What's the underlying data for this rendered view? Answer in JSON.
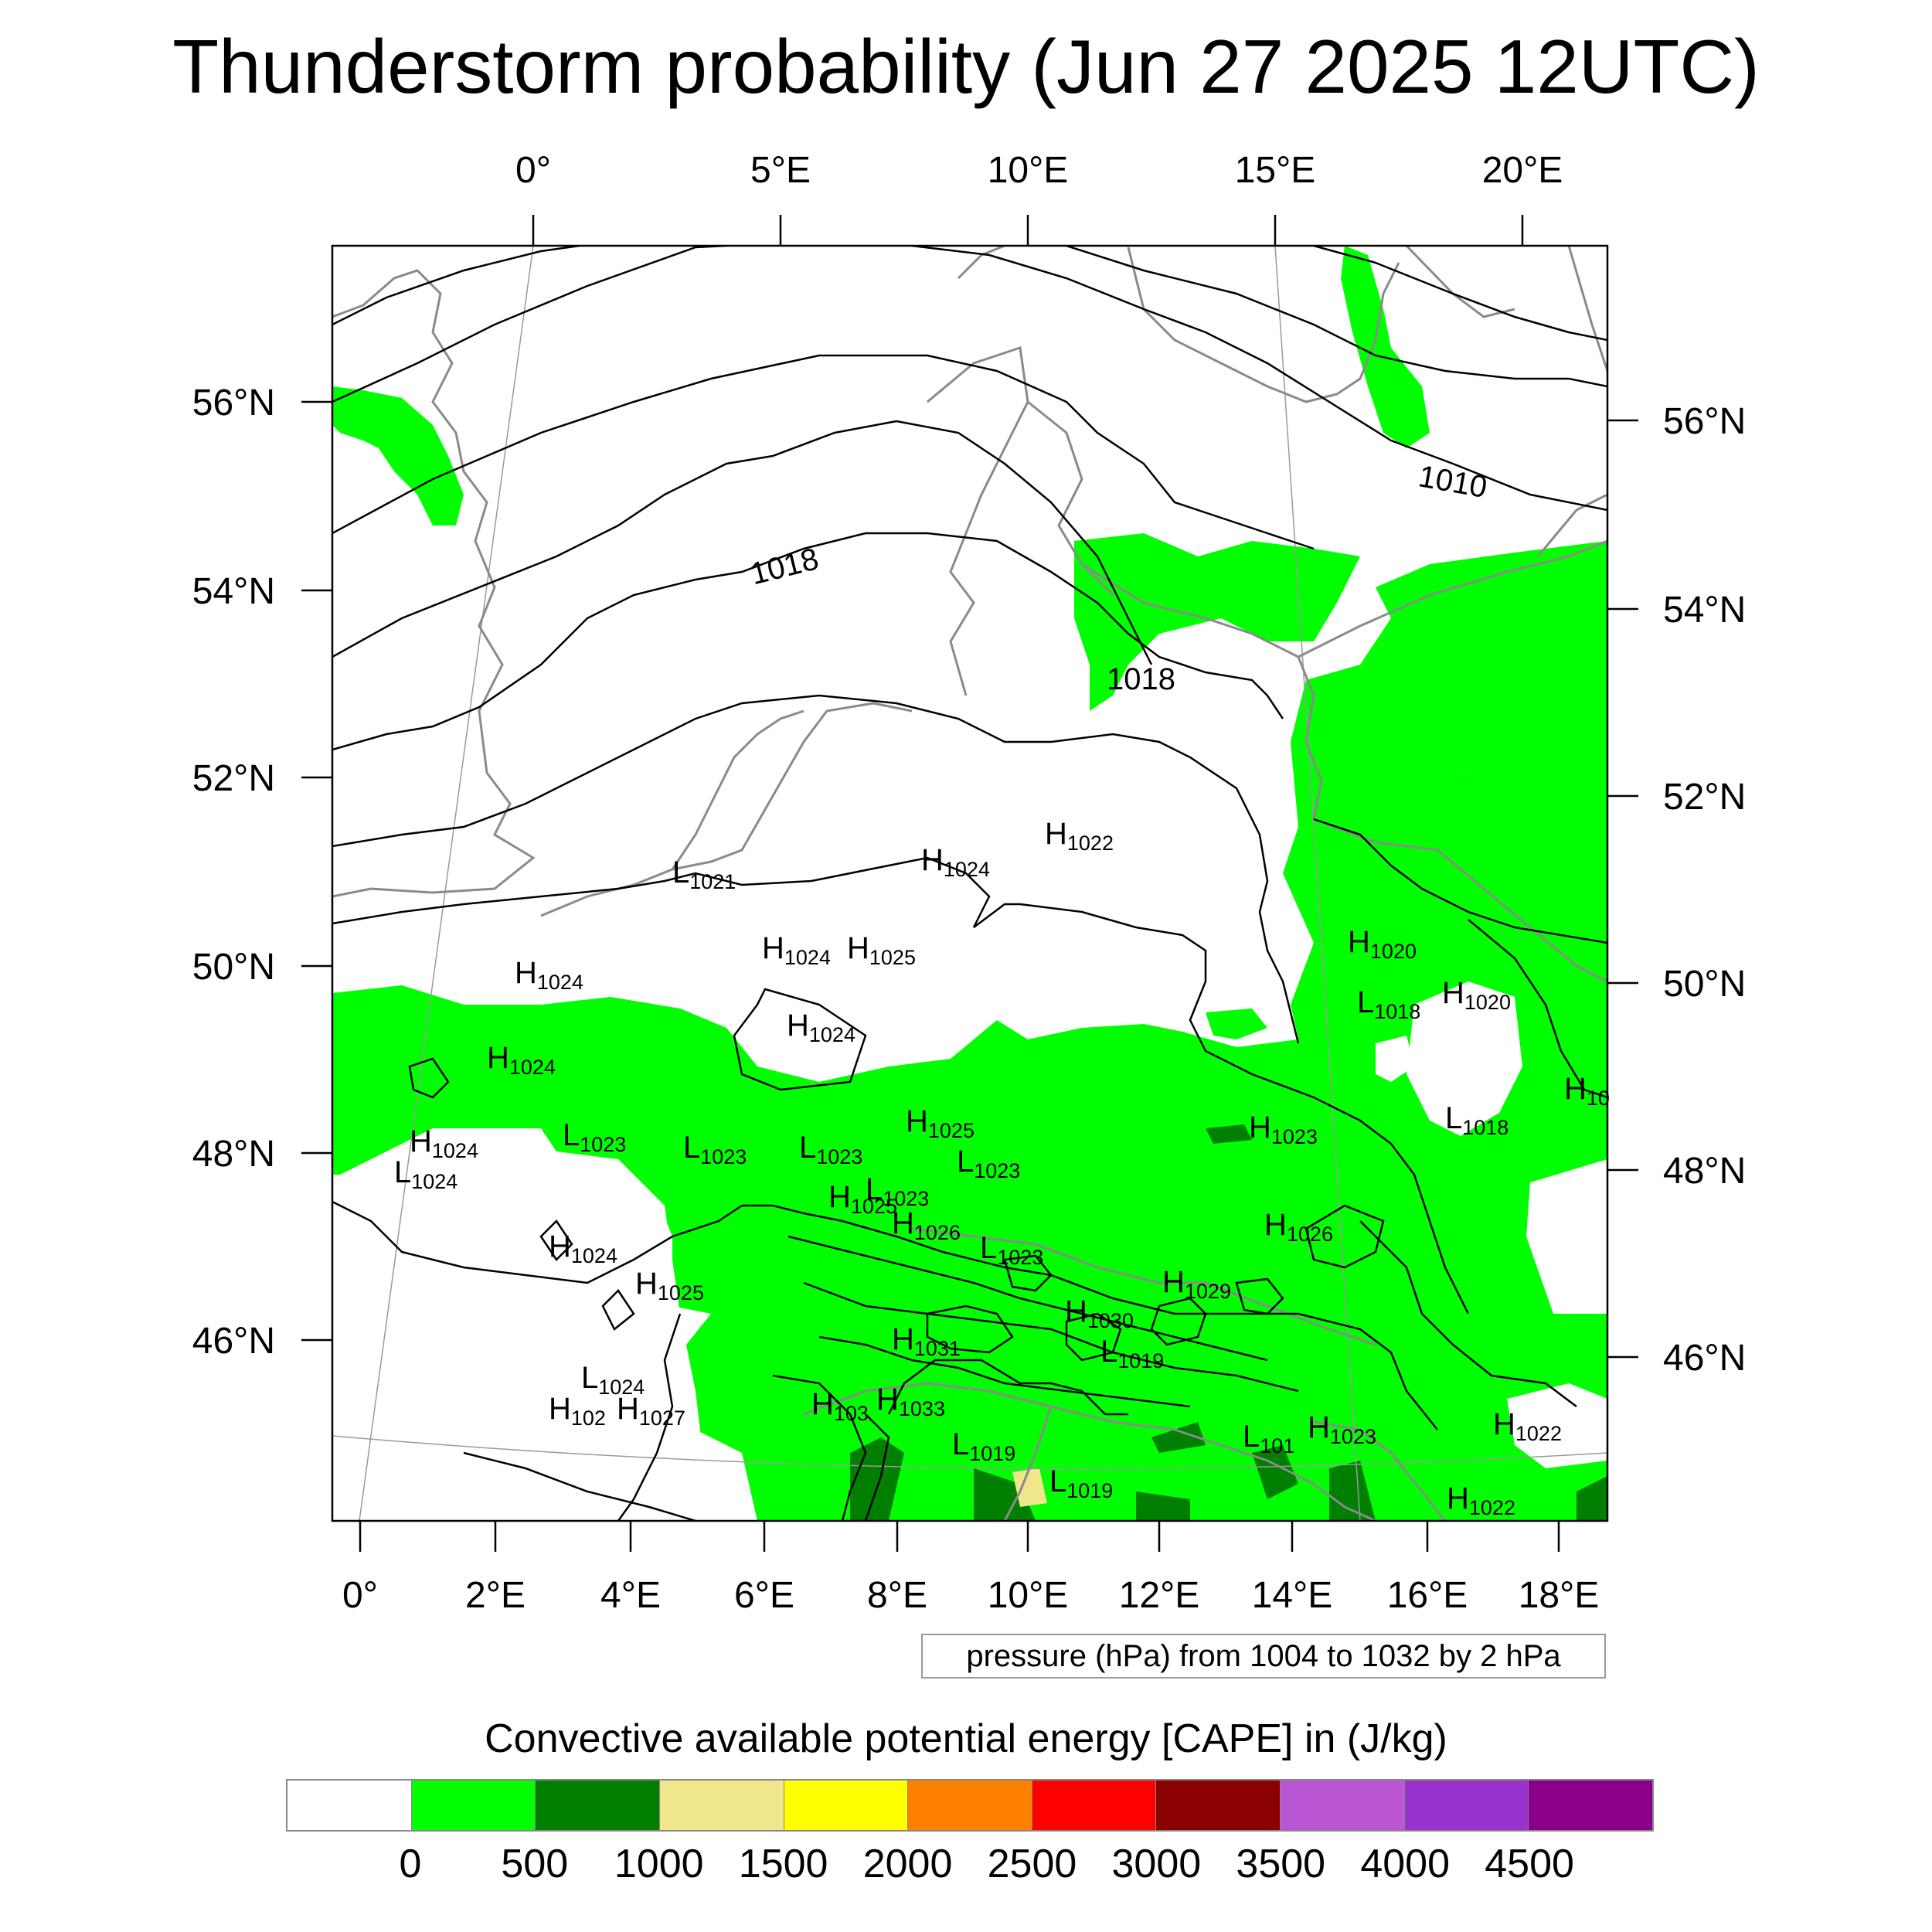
{
  "title": "Thunderstorm probability (Jun 27 2025 12UTC)",
  "axes": {
    "top_lon_labels": [
      "0°",
      "5°E",
      "10°E",
      "15°E",
      "20°E"
    ],
    "bottom_lon_labels": [
      "0°",
      "2°E",
      "4°E",
      "6°E",
      "8°E",
      "10°E",
      "12°E",
      "14°E",
      "16°E",
      "18°E"
    ],
    "left_lat_labels": [
      "56°N",
      "54°N",
      "52°N",
      "50°N",
      "48°N",
      "46°N"
    ],
    "right_lat_labels": [
      "56°N",
      "54°N",
      "52°N",
      "50°N",
      "48°N",
      "46°N"
    ]
  },
  "isobar_labels": [
    "1010",
    "1018",
    "1018"
  ],
  "pressure_centers": [
    {
      "type": "H",
      "value": "1022"
    },
    {
      "type": "H",
      "value": "1024"
    },
    {
      "type": "L",
      "value": "1021"
    },
    {
      "type": "H",
      "value": "1024"
    },
    {
      "type": "H",
      "value": "1025"
    },
    {
      "type": "H",
      "value": "1024"
    },
    {
      "type": "H",
      "value": "1024"
    },
    {
      "type": "H",
      "value": "1024"
    },
    {
      "type": "H",
      "value": "1024"
    },
    {
      "type": "L",
      "value": "1024"
    },
    {
      "type": "L",
      "value": "1023"
    },
    {
      "type": "L",
      "value": "1023"
    },
    {
      "type": "L",
      "value": "1023"
    },
    {
      "type": "H",
      "value": "1025"
    },
    {
      "type": "L",
      "value": "1023"
    },
    {
      "type": "L",
      "value": "1023"
    },
    {
      "type": "H",
      "value": "1025"
    },
    {
      "type": "H",
      "value": "1026"
    },
    {
      "type": "L",
      "value": "1023"
    },
    {
      "type": "H",
      "value": "1024"
    },
    {
      "type": "H",
      "value": "1025"
    },
    {
      "type": "H",
      "value": "1020"
    },
    {
      "type": "L",
      "value": "1018"
    },
    {
      "type": "H",
      "value": "1020"
    },
    {
      "type": "H",
      "value": "10"
    },
    {
      "type": "H",
      "value": "1023"
    },
    {
      "type": "L",
      "value": "1018"
    },
    {
      "type": "H",
      "value": "1026"
    },
    {
      "type": "H",
      "value": "1029"
    },
    {
      "type": "H",
      "value": "1030"
    },
    {
      "type": "L",
      "value": "1019"
    },
    {
      "type": "H",
      "value": "1031"
    },
    {
      "type": "L",
      "value": "1024"
    },
    {
      "type": "H",
      "value": "102"
    },
    {
      "type": "H",
      "value": "1027"
    },
    {
      "type": "H",
      "value": "103"
    },
    {
      "type": "H",
      "value": "1033"
    },
    {
      "type": "L",
      "value": "1019"
    },
    {
      "type": "L",
      "value": "1019"
    },
    {
      "type": "L",
      "value": "101"
    },
    {
      "type": "H",
      "value": "1023"
    },
    {
      "type": "H",
      "value": "1022"
    },
    {
      "type": "H",
      "value": "1022"
    }
  ],
  "pressure_note": "pressure (hPa) from 1004 to 1032 by 2 hPa",
  "legend": {
    "title": "Convective available potential energy [CAPE] in (J/kg)",
    "colors": [
      "#ffffff",
      "#00ff00",
      "#007f00",
      "#f0e68c",
      "#ffff00",
      "#ff8000",
      "#ff0000",
      "#8b0000",
      "#ba55d3",
      "#9932cc",
      "#8b008b"
    ],
    "labels": [
      "0",
      "500",
      "1000",
      "1500",
      "2000",
      "2500",
      "3000",
      "3500",
      "4000",
      "4500"
    ]
  }
}
